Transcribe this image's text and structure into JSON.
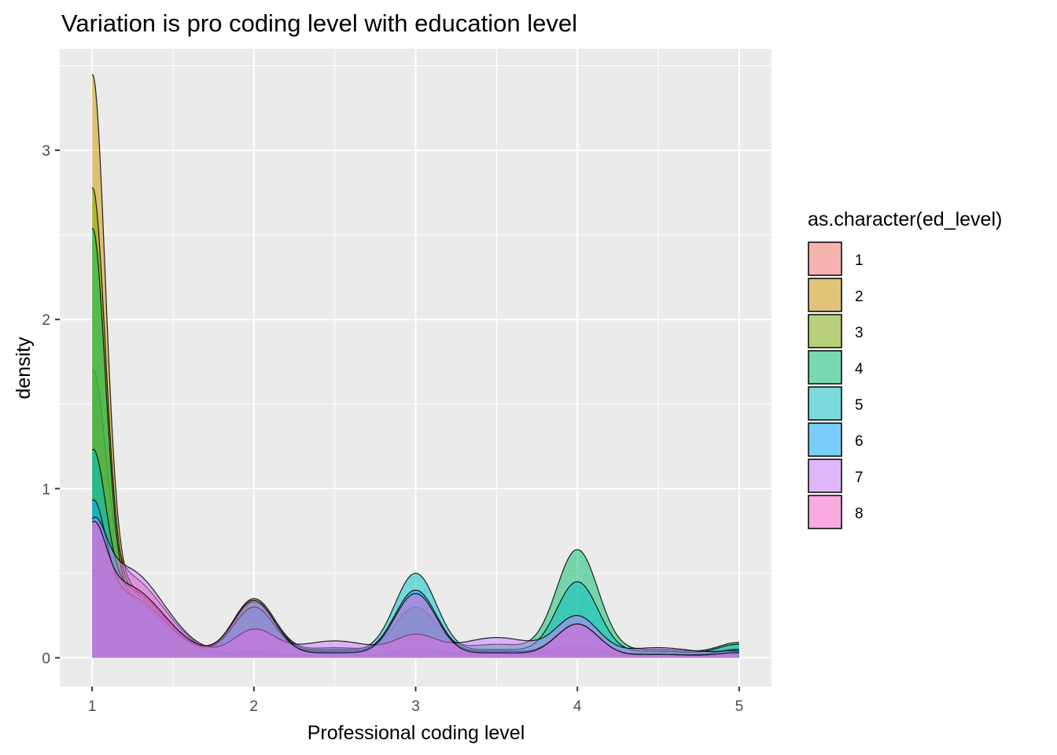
{
  "chart_data": {
    "type": "area",
    "title": "Variation is pro coding level with education level",
    "xlabel": "Professional coding level",
    "ylabel": "density",
    "xlim": [
      0.8,
      5.2
    ],
    "ylim": [
      -0.17,
      3.6
    ],
    "x_ticks": [
      1,
      2,
      3,
      4,
      5
    ],
    "x_tick_labels": [
      "1",
      "2",
      "3",
      "4",
      "5"
    ],
    "y_ticks": [
      0,
      1,
      2,
      3
    ],
    "y_tick_labels": [
      "0",
      "1",
      "2",
      "3"
    ],
    "grid": true,
    "legend": {
      "title": "as.character(ed_level)",
      "position": "right"
    },
    "series": [
      {
        "name": "1",
        "color": "#F8766D",
        "x": [
          1,
          1.2,
          1.5,
          2,
          2.5,
          3,
          3.5,
          4,
          4.5,
          5
        ],
        "y": [
          1.7,
          0.55,
          0.02,
          0.04,
          0.02,
          0.05,
          0.04,
          0.08,
          0.03,
          0.03
        ]
      },
      {
        "name": "2",
        "color": "#CD9600",
        "x": [
          1,
          1.2,
          1.5,
          2,
          2.5,
          3,
          3.5,
          4,
          4.5,
          5
        ],
        "y": [
          3.45,
          0.55,
          0.01,
          0.02,
          0.01,
          0.03,
          0.02,
          0.04,
          0.02,
          0.02
        ]
      },
      {
        "name": "3",
        "color": "#7CAE00",
        "x": [
          1,
          1.2,
          1.5,
          2,
          2.5,
          3,
          3.5,
          4,
          4.5,
          5
        ],
        "y": [
          2.78,
          0.5,
          0.02,
          0.03,
          0.02,
          0.05,
          0.03,
          0.06,
          0.02,
          0.05
        ]
      },
      {
        "name": "4",
        "color": "#00BE67",
        "x": [
          1,
          1.2,
          1.5,
          2,
          2.5,
          3,
          3.5,
          4,
          4.5,
          5
        ],
        "y": [
          2.54,
          0.45,
          0.03,
          0.35,
          0.06,
          0.3,
          0.08,
          0.64,
          0.05,
          0.09
        ]
      },
      {
        "name": "5",
        "color": "#00BFC4",
        "x": [
          1,
          1.2,
          1.5,
          2,
          2.5,
          3,
          3.5,
          4,
          4.5,
          5
        ],
        "y": [
          1.23,
          0.45,
          0.03,
          0.33,
          0.05,
          0.5,
          0.05,
          0.45,
          0.04,
          0.08
        ]
      },
      {
        "name": "6",
        "color": "#00A9FF",
        "x": [
          1,
          1.2,
          1.5,
          2,
          2.5,
          3,
          3.5,
          4,
          4.5,
          5
        ],
        "y": [
          0.93,
          0.4,
          0.02,
          0.3,
          0.04,
          0.4,
          0.04,
          0.2,
          0.02,
          0.05
        ]
      },
      {
        "name": "7",
        "color": "#C77CFF",
        "x": [
          1,
          1.2,
          1.5,
          2,
          2.5,
          3,
          3.5,
          4,
          4.5,
          5
        ],
        "y": [
          0.82,
          0.55,
          0.18,
          0.17,
          0.1,
          0.14,
          0.12,
          0.25,
          0.06,
          0.04
        ]
      },
      {
        "name": "8",
        "color": "#FF61CC",
        "x": [
          1,
          1.2,
          1.5,
          2,
          2.5,
          3,
          3.5,
          4,
          4.5,
          5
        ],
        "y": [
          0.8,
          0.45,
          0.12,
          0.34,
          0.03,
          0.38,
          0.03,
          0.2,
          0.02,
          0.03
        ]
      }
    ]
  }
}
